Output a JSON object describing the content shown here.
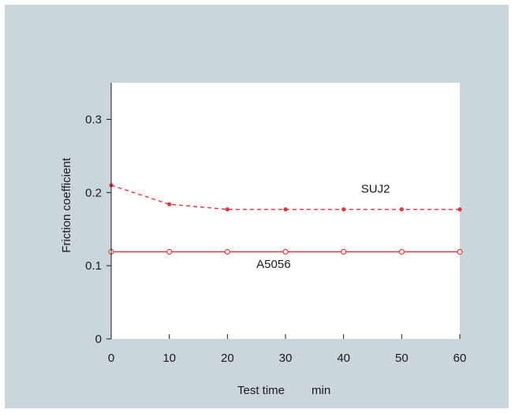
{
  "chart_data": {
    "type": "line",
    "title": "",
    "xlabel": "Test time",
    "xunit": "min",
    "ylabel": "Friction coefficient",
    "xlim": [
      0,
      60
    ],
    "ylim": [
      0,
      0.35
    ],
    "x_ticks": [
      "0",
      "10",
      "20",
      "30",
      "40",
      "50",
      "60"
    ],
    "y_ticks": [
      {
        "value": 0,
        "label": "0"
      },
      {
        "value": 0.1,
        "label": "0.1"
      },
      {
        "value": 0.2,
        "label": "0.2"
      },
      {
        "value": 0.3,
        "label": "0.3"
      }
    ],
    "grid": false,
    "legend": "none",
    "series": [
      {
        "name": "SUJ2",
        "style": "dashed",
        "marker": "filled-circle",
        "color": "#e8333a",
        "x": [
          0,
          10,
          20,
          30,
          40,
          50,
          60
        ],
        "y": [
          0.21,
          0.184,
          0.177,
          0.177,
          0.177,
          0.177,
          0.177
        ],
        "label_at": {
          "x": 43,
          "y": 0.2
        }
      },
      {
        "name": "A5056",
        "style": "solid",
        "marker": "open-circle",
        "color": "#e8333a",
        "x": [
          0,
          10,
          20,
          30,
          40,
          50,
          60
        ],
        "y": [
          0.119,
          0.119,
          0.119,
          0.119,
          0.119,
          0.119,
          0.119
        ],
        "label_at": {
          "x": 25,
          "y": 0.097
        }
      }
    ],
    "colors": {
      "background": "#cad6db",
      "plot_area": "#ffffff",
      "axis": "#1a1a1a"
    }
  }
}
